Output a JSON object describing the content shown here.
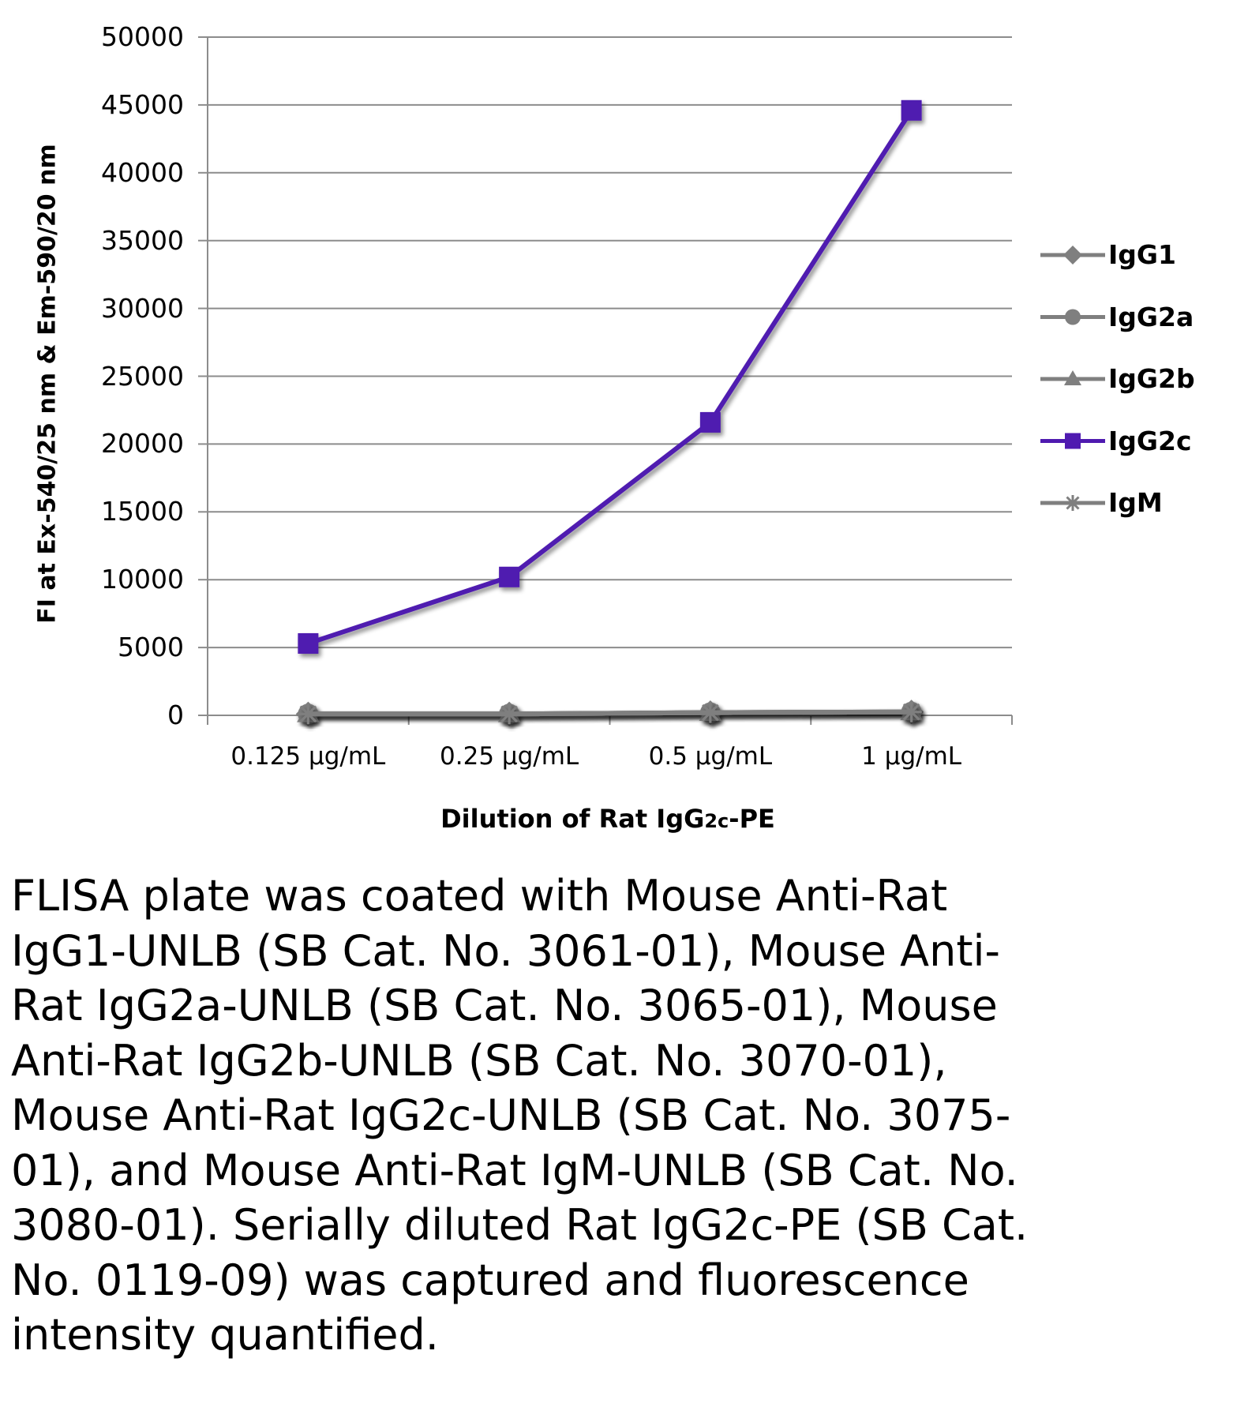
{
  "chart_data": {
    "type": "line",
    "title": "",
    "xlabel": "Dilution of Rat IgG2c-PE",
    "ylabel": "FI at Ex-540/25 nm & Em-590/20 nm",
    "categories": [
      "0.125 µg/mL",
      "0.25 µg/mL",
      "0.5 µg/mL",
      "1 µg/mL"
    ],
    "ylim": [
      0,
      50000
    ],
    "yticks": [
      0,
      5000,
      10000,
      15000,
      20000,
      25000,
      30000,
      35000,
      40000,
      45000,
      50000
    ],
    "ytick_labels": [
      "0",
      "5000",
      "10000",
      "15000",
      "20000",
      "25000",
      "30000",
      "35000",
      "40000",
      "45000",
      "50000"
    ],
    "grid": true,
    "legend": "right",
    "series": [
      {
        "name": "IgG1",
        "values": [
          100,
          100,
          200,
          250
        ],
        "color": "#7f7f7f",
        "marker": "diamond"
      },
      {
        "name": "IgG2a",
        "values": [
          100,
          100,
          200,
          250
        ],
        "color": "#7f7f7f",
        "marker": "circle"
      },
      {
        "name": "IgG2b",
        "values": [
          100,
          100,
          200,
          250
        ],
        "color": "#7f7f7f",
        "marker": "triangle"
      },
      {
        "name": "IgG2c",
        "values": [
          5300,
          10200,
          21600,
          44600
        ],
        "color": "#4f1ab0",
        "marker": "square"
      },
      {
        "name": "IgM",
        "values": [
          100,
          100,
          200,
          250
        ],
        "color": "#7f7f7f",
        "marker": "star"
      }
    ]
  },
  "caption": "FLISA plate was coated with Mouse Anti-Rat IgG1-UNLB (SB Cat. No. 3061-01), Mouse Anti-Rat IgG2a-UNLB (SB Cat. No. 3065-01), Mouse Anti-Rat IgG2b-UNLB (SB Cat. No. 3070-01), Mouse Anti-Rat IgG2c-UNLB (SB Cat. No. 3075-01), and Mouse Anti-Rat IgM-UNLB (SB Cat. No. 3080-01).  Serially diluted Rat IgG2c-PE (SB Cat. No. 0119-09) was captured and fluorescence intensity quantified."
}
